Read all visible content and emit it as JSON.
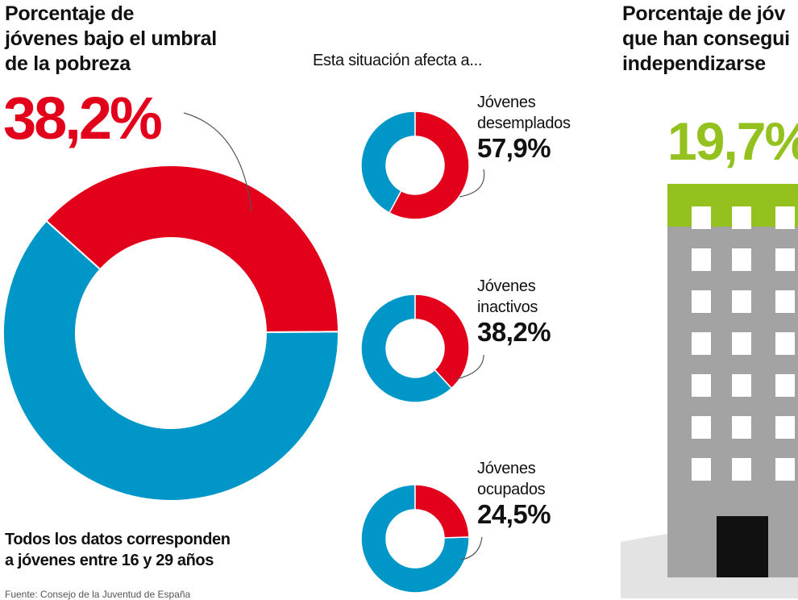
{
  "left": {
    "title_lines": [
      "Porcentaje de",
      "jóvenes bajo el umbral",
      "de la pobreza"
    ],
    "value_text": "38,2%"
  },
  "middle": {
    "subtitle": "Esta situación afecta a..."
  },
  "right": {
    "title_lines": [
      "Porcentaje de jóv",
      "que han consegui",
      "independizarse"
    ],
    "value_text": "19,7%"
  },
  "footnote": {
    "lines": [
      "Todos los datos corresponden",
      "a jóvenes entre 16 y 29 años"
    ],
    "source": "Fuente: Consejo de la Juventud de España"
  },
  "colors": {
    "red": "#e2001a",
    "blue": "#0096c8",
    "green": "#95c11f",
    "gray": "#a3a3a3",
    "light_gray": "#e3e3e3",
    "window": "#ffffff",
    "door": "#111111"
  },
  "chart_data": [
    {
      "type": "pie",
      "title": "Porcentaje de jóvenes bajo el umbral de la pobreza",
      "slices": [
        {
          "label": "Bajo el umbral de la pobreza",
          "value": 38.2,
          "color": "#e2001a"
        },
        {
          "label": "",
          "value": 61.8,
          "color": "#0096c8"
        }
      ]
    },
    {
      "type": "pie",
      "title": "Esta situación afecta a...",
      "series": [
        {
          "label_lines": [
            "Jóvenes",
            "desemplados"
          ],
          "value": 57.9,
          "value_text": "57,9%"
        },
        {
          "label_lines": [
            "Jóvenes",
            "inactivos"
          ],
          "value": 38.2,
          "value_text": "38,2%"
        },
        {
          "label_lines": [
            "Jóvenes",
            "ocupados"
          ],
          "value": 24.5,
          "value_text": "24,5%"
        }
      ]
    },
    {
      "type": "bar",
      "title": "Porcentaje de jóvenes que han conseguido independizarse",
      "values": [
        19.7
      ],
      "value_text": "19,7%",
      "ylim": [
        0,
        100
      ]
    }
  ]
}
